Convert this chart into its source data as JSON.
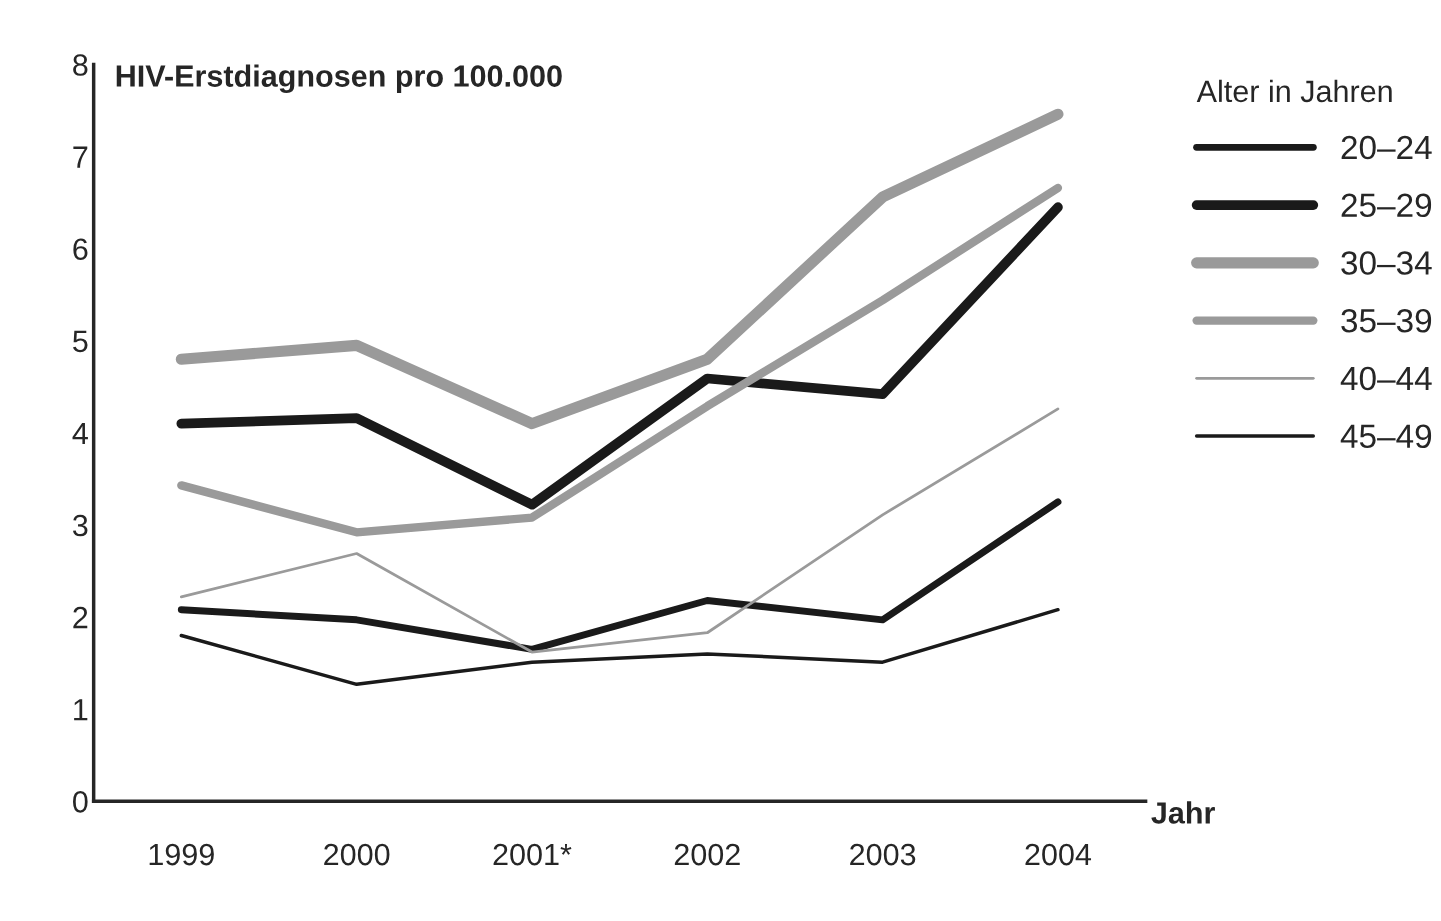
{
  "chart_data": {
    "type": "line",
    "title": "HIV-Erstdiagnosen pro 100.000",
    "xlabel": "Jahr",
    "legend_title": "Alter in Jahren",
    "categories": [
      "1999",
      "2000",
      "2001*",
      "2002",
      "2003",
      "2004"
    ],
    "ylim": [
      0,
      8
    ],
    "yticks": [
      0,
      1,
      2,
      3,
      4,
      5,
      6,
      7,
      8
    ],
    "grid": false,
    "legend": "right",
    "marker": "none",
    "line_style": "solid",
    "series": [
      {
        "name": "20–24",
        "color": "#1a1a1a",
        "values": [
          2.08,
          1.97,
          1.65,
          2.18,
          1.97,
          3.25
        ]
      },
      {
        "name": "25–29",
        "color": "#1a1a1a",
        "values": [
          4.1,
          4.16,
          3.22,
          4.59,
          4.42,
          6.45
        ]
      },
      {
        "name": "30–34",
        "color": "#9a9a9a",
        "values": [
          4.8,
          4.95,
          4.1,
          4.8,
          6.56,
          7.46
        ]
      },
      {
        "name": "35–39",
        "color": "#9a9a9a",
        "values": [
          3.43,
          2.92,
          3.08,
          4.29,
          5.44,
          6.66
        ]
      },
      {
        "name": "40–44",
        "color": "#9a9a9a",
        "values": [
          2.22,
          2.69,
          1.62,
          1.83,
          3.11,
          4.26
        ]
      },
      {
        "name": "45–49",
        "color": "#1a1a1a",
        "values": [
          1.8,
          1.27,
          1.51,
          1.6,
          1.51,
          2.08
        ]
      }
    ]
  }
}
